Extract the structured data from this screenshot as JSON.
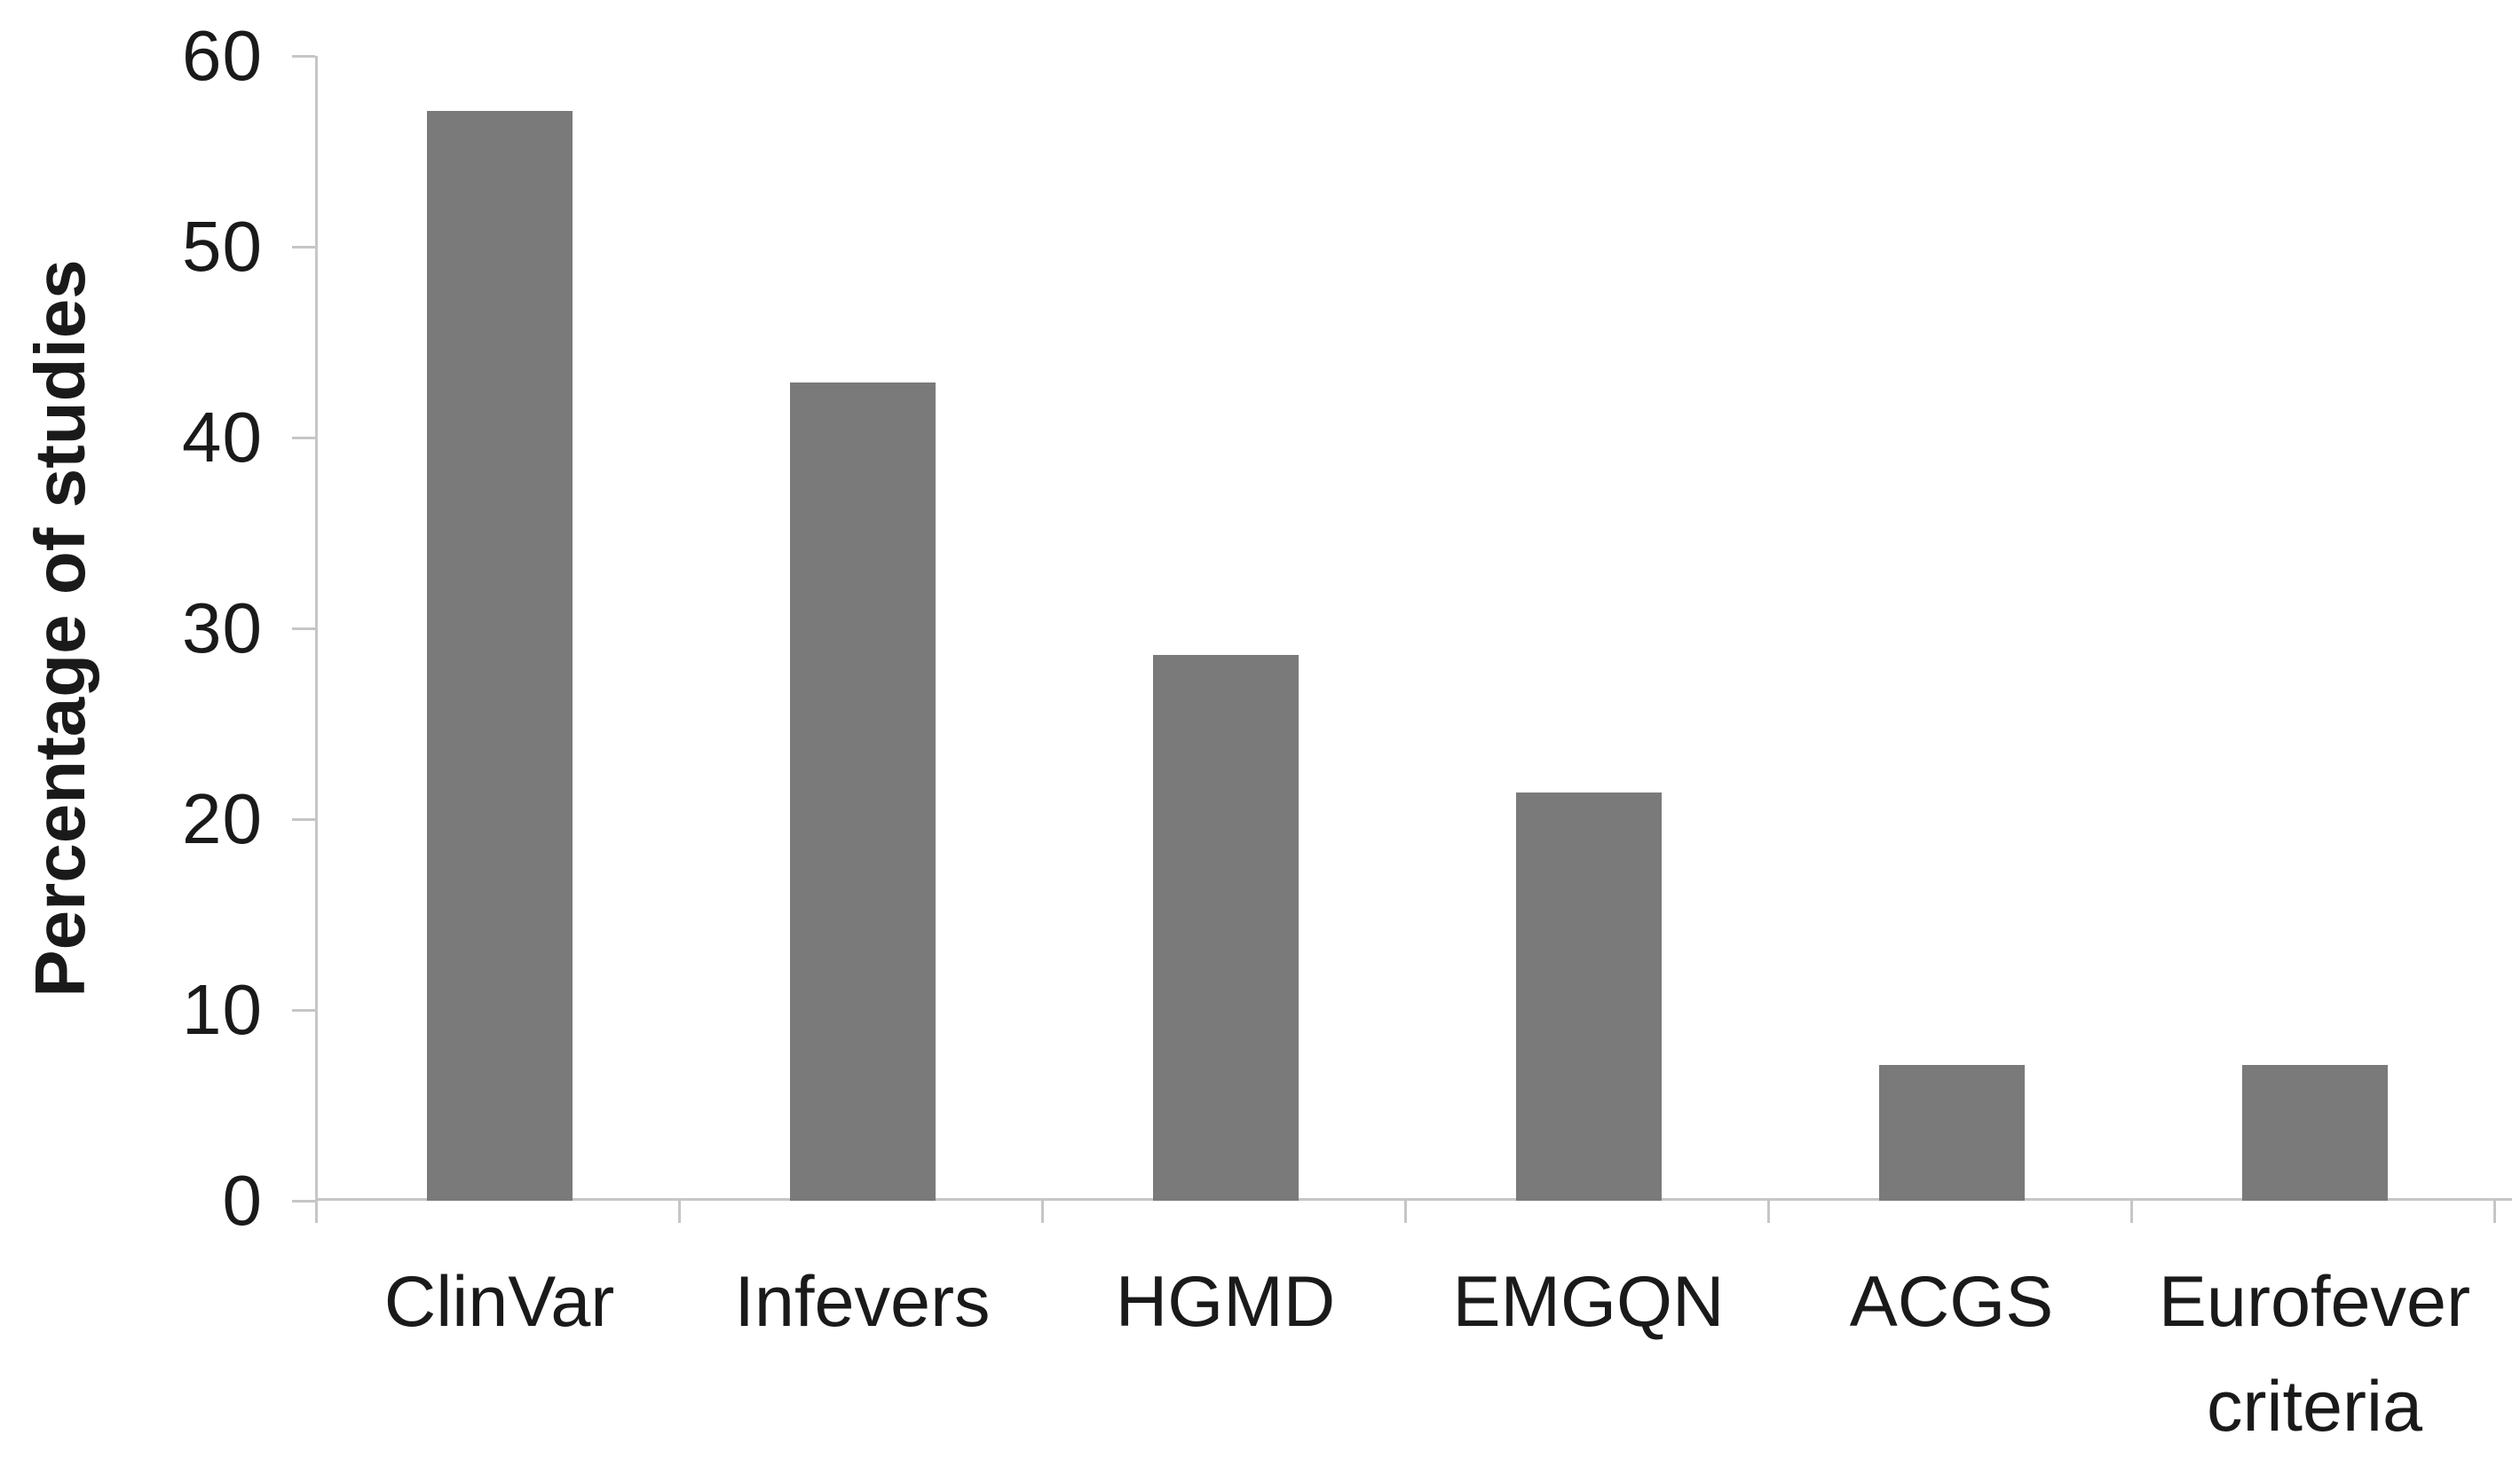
{
  "chart_data": {
    "type": "bar",
    "title": "",
    "xlabel": "",
    "ylabel": "Percentage of studies",
    "categories": [
      "ClinVar",
      "Infevers",
      "HGMD",
      "EMGQN",
      "ACGS",
      "Eurofever criteria"
    ],
    "category_lines": [
      [
        "ClinVar"
      ],
      [
        "Infevers"
      ],
      [
        "HGMD"
      ],
      [
        "EMGQN"
      ],
      [
        "ACGS"
      ],
      [
        "Eurofever",
        "criteria"
      ]
    ],
    "values": [
      57.1,
      42.9,
      28.6,
      21.4,
      7.1,
      7.1
    ],
    "series": [
      {
        "name": "Percentage of studies",
        "values": [
          57.1,
          42.9,
          28.6,
          21.4,
          7.1,
          7.1
        ]
      }
    ],
    "ylim": [
      0,
      60
    ],
    "yticks": [
      0,
      10,
      20,
      30,
      40,
      50,
      60
    ],
    "grid": false,
    "legend": "none",
    "bar_color": "#7a7a7a",
    "axis_color": "#c6c6c6",
    "text_color": "#1a1a1a"
  }
}
